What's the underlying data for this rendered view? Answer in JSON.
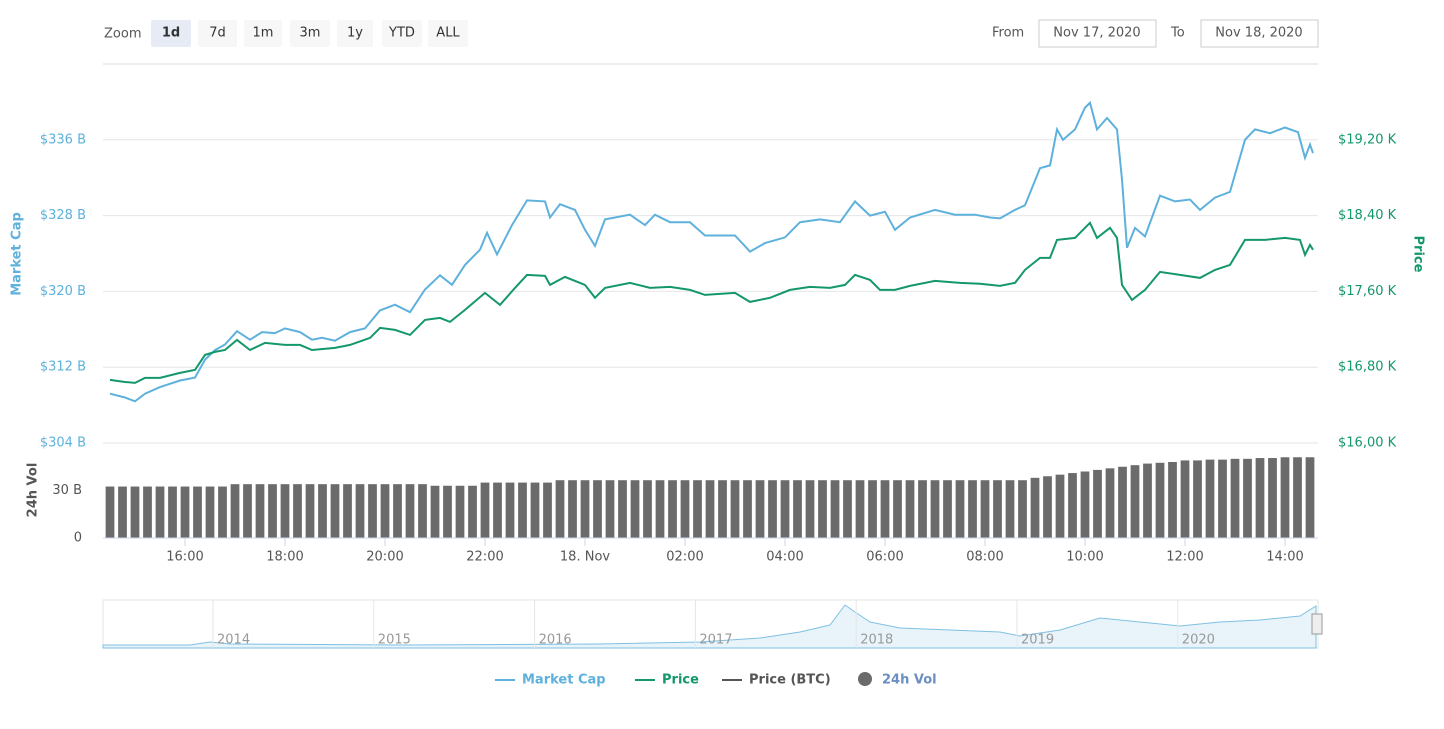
{
  "controls": {
    "zoom_label": "Zoom",
    "zoom_options": [
      "1d",
      "7d",
      "1m",
      "3m",
      "1y",
      "YTD",
      "ALL"
    ],
    "zoom_selected": 0,
    "from_label": "From",
    "from_value": "Nov 17, 2020",
    "to_label": "To",
    "to_value": "Nov 18, 2020"
  },
  "chart_data": {
    "type": "line",
    "y_label": "Market Cap",
    "y2_label": "Price",
    "xlim": [
      14.36,
      38.66
    ],
    "xticks": [
      {
        "value": 16,
        "label": "16:00"
      },
      {
        "value": 18,
        "label": "18:00"
      },
      {
        "value": 20,
        "label": "20:00"
      },
      {
        "value": 22,
        "label": "22:00"
      },
      {
        "value": 24,
        "label": "18. Nov"
      },
      {
        "value": 26,
        "label": "02:00"
      },
      {
        "value": 28,
        "label": "04:00"
      },
      {
        "value": 30,
        "label": "06:00"
      },
      {
        "value": 32,
        "label": "08:00"
      },
      {
        "value": 34,
        "label": "10:00"
      },
      {
        "value": 36,
        "label": "12:00"
      },
      {
        "value": 38,
        "label": "14:00"
      }
    ],
    "ylim": [
      304,
      344
    ],
    "yticks": [
      {
        "value": 304,
        "label": "$304 B"
      },
      {
        "value": 312,
        "label": "$312 B"
      },
      {
        "value": 320,
        "label": "$320 B"
      },
      {
        "value": 328,
        "label": "$328 B"
      },
      {
        "value": 336,
        "label": "$336 B"
      }
    ],
    "y2lim": [
      16000,
      20000
    ],
    "y2ticks": [
      {
        "value": 16000,
        "label": "$16,00 K"
      },
      {
        "value": 16800,
        "label": "$16,80 K"
      },
      {
        "value": 17600,
        "label": "$17,60 K"
      },
      {
        "value": 18400,
        "label": "$18,40 K"
      },
      {
        "value": 19200,
        "label": "$19,20 K"
      }
    ],
    "grid": true,
    "series": [
      {
        "name": "Market Cap",
        "color": "#5eb1dc",
        "x": [
          14.5,
          14.8,
          15.0,
          15.2,
          15.5,
          15.9,
          16.2,
          16.4,
          16.6,
          16.8,
          17.04,
          17.3,
          17.54,
          17.8,
          18.0,
          18.3,
          18.54,
          18.74,
          19.0,
          19.3,
          19.6,
          19.9,
          20.2,
          20.5,
          20.8,
          21.1,
          21.34,
          21.6,
          21.9,
          22.04,
          22.24,
          22.54,
          22.84,
          23.2,
          23.3,
          23.5,
          23.8,
          24.0,
          24.2,
          24.4,
          24.9,
          25.2,
          25.4,
          25.7,
          26.1,
          26.4,
          26.7,
          27.0,
          27.3,
          27.6,
          28.0,
          28.3,
          28.7,
          29.1,
          29.4,
          29.7,
          30.0,
          30.2,
          30.5,
          31.0,
          31.4,
          31.8,
          32.1,
          32.3,
          32.6,
          32.8,
          33.1,
          33.3,
          33.44,
          33.56,
          33.8,
          34.0,
          34.1,
          34.24,
          34.44,
          34.64,
          34.74,
          34.84,
          35.0,
          35.2,
          35.5,
          35.8,
          36.1,
          36.3,
          36.6,
          36.9,
          37.2,
          37.4,
          37.7,
          38.0,
          38.26,
          38.4,
          38.5,
          38.56
        ],
        "values": [
          309.2,
          308.8,
          308.4,
          309.2,
          309.9,
          310.6,
          310.9,
          312.8,
          313.8,
          314.4,
          315.8,
          314.9,
          315.7,
          315.6,
          316.1,
          315.7,
          314.9,
          315.1,
          314.8,
          315.7,
          316.1,
          318.0,
          318.6,
          317.8,
          320.2,
          321.7,
          320.7,
          322.8,
          324.4,
          326.2,
          323.9,
          327.0,
          329.6,
          329.5,
          327.8,
          329.2,
          328.6,
          326.5,
          324.8,
          327.6,
          328.1,
          327.0,
          328.1,
          327.3,
          327.3,
          325.9,
          325.9,
          325.9,
          324.2,
          325.1,
          325.7,
          327.3,
          327.6,
          327.3,
          329.5,
          328.0,
          328.4,
          326.5,
          327.8,
          328.6,
          328.1,
          328.1,
          327.8,
          327.7,
          328.6,
          329.1,
          333.0,
          333.3,
          337.1,
          336.0,
          337.1,
          339.4,
          339.9,
          337.1,
          338.3,
          337.1,
          331.8,
          324.6,
          326.7,
          325.8,
          330.1,
          329.5,
          329.7,
          328.6,
          329.9,
          330.5,
          336.0,
          337.1,
          336.7,
          337.3,
          336.8,
          334.1,
          335.5,
          334.6
        ]
      },
      {
        "name": "Price",
        "color": "#14976a",
        "axis": "y2",
        "x": [
          14.5,
          14.8,
          15.0,
          15.2,
          15.5,
          15.9,
          16.2,
          16.4,
          16.6,
          16.8,
          17.04,
          17.3,
          17.6,
          18.0,
          18.3,
          18.54,
          19.0,
          19.3,
          19.7,
          19.9,
          20.2,
          20.5,
          20.8,
          21.1,
          21.3,
          21.6,
          22.0,
          22.3,
          22.6,
          22.84,
          23.2,
          23.3,
          23.6,
          24.0,
          24.2,
          24.4,
          24.9,
          25.3,
          25.7,
          26.1,
          26.4,
          27.0,
          27.3,
          27.7,
          28.1,
          28.5,
          28.9,
          29.2,
          29.4,
          29.7,
          29.9,
          30.2,
          30.5,
          31.0,
          31.5,
          31.9,
          32.3,
          32.6,
          32.8,
          33.1,
          33.3,
          33.44,
          33.8,
          34.1,
          34.24,
          34.5,
          34.64,
          34.74,
          34.94,
          35.2,
          35.5,
          35.9,
          36.3,
          36.6,
          36.9,
          37.2,
          37.6,
          38.0,
          38.3,
          38.4,
          38.5,
          38.56
        ],
        "values": [
          16666,
          16644,
          16634,
          16687,
          16687,
          16740,
          16771,
          16930,
          16961,
          16982,
          17088,
          16982,
          17056,
          17035,
          17035,
          16982,
          17004,
          17035,
          17109,
          17215,
          17194,
          17141,
          17299,
          17320,
          17278,
          17405,
          17584,
          17458,
          17637,
          17774,
          17764,
          17669,
          17753,
          17669,
          17532,
          17637,
          17690,
          17637,
          17648,
          17616,
          17563,
          17584,
          17489,
          17532,
          17616,
          17648,
          17637,
          17669,
          17774,
          17721,
          17616,
          17616,
          17658,
          17711,
          17690,
          17680,
          17658,
          17690,
          17827,
          17954,
          17954,
          18144,
          18165,
          18324,
          18165,
          18271,
          18165,
          17669,
          17510,
          17616,
          17806,
          17774,
          17743,
          17827,
          17880,
          18144,
          18144,
          18165,
          18144,
          17986,
          18091,
          18039
        ]
      }
    ],
    "extra_legend": [
      {
        "name": "Price (BTC)",
        "color": "#555555"
      }
    ],
    "volume": {
      "type": "bar",
      "name": "24h Vol",
      "axis_label": "24h Vol",
      "color": "#6b6b6b",
      "ylim": [
        0,
        60
      ],
      "yticks": [
        0,
        {
          "value": 30,
          "label": "30 B"
        }
      ],
      "x": [
        14.5,
        14.75,
        15,
        15.25,
        15.5,
        15.75,
        16,
        16.25,
        16.5,
        16.75,
        17,
        17.25,
        17.5,
        17.75,
        18,
        18.25,
        18.5,
        18.75,
        19,
        19.25,
        19.5,
        19.75,
        20,
        20.25,
        20.5,
        20.75,
        21,
        21.25,
        21.5,
        21.75,
        22,
        22.25,
        22.5,
        22.75,
        23,
        23.25,
        23.5,
        23.75,
        24,
        24.25,
        24.5,
        24.75,
        25,
        25.25,
        25.5,
        25.75,
        26,
        26.25,
        26.5,
        26.75,
        27,
        27.25,
        27.5,
        27.75,
        28,
        28.25,
        28.5,
        28.75,
        29,
        29.25,
        29.5,
        29.75,
        30,
        30.25,
        30.5,
        30.75,
        31,
        31.25,
        31.5,
        31.75,
        32,
        32.25,
        32.5,
        32.75,
        33,
        33.25,
        33.5,
        33.75,
        34,
        34.25,
        34.5,
        34.75,
        35,
        35.25,
        35.5,
        35.75,
        36,
        36.25,
        36.5,
        36.75,
        37,
        37.25,
        37.5,
        37.75,
        38,
        38.25,
        38.5
      ],
      "values": [
        32.5,
        32.5,
        32.5,
        32.5,
        32.5,
        32.5,
        32.5,
        32.5,
        32.5,
        32.5,
        34,
        34,
        34,
        34,
        34,
        34,
        34,
        34,
        34,
        34,
        34,
        34,
        34,
        34,
        34,
        34,
        33,
        33,
        33,
        33,
        35,
        35,
        35,
        35,
        35,
        35,
        36.5,
        36.5,
        36.5,
        36.5,
        36.5,
        36.5,
        36.5,
        36.5,
        36.5,
        36.5,
        36.5,
        36.5,
        36.5,
        36.5,
        36.5,
        36.5,
        36.5,
        36.5,
        36.5,
        36.5,
        36.5,
        36.5,
        36.5,
        36.5,
        36.5,
        36.5,
        36.5,
        36.5,
        36.5,
        36.5,
        36.5,
        36.5,
        36.5,
        36.5,
        36.5,
        36.5,
        36.5,
        36.5,
        38,
        39,
        40,
        41,
        42,
        43,
        44,
        45,
        46,
        47,
        47.5,
        48,
        49,
        49,
        49.5,
        49.5,
        50,
        50,
        50.5,
        50.5,
        51,
        51,
        51
      ]
    }
  },
  "navigator": {
    "labels": [
      "2014",
      "2015",
      "2016",
      "2017",
      "2018",
      "2019",
      "2020"
    ]
  }
}
